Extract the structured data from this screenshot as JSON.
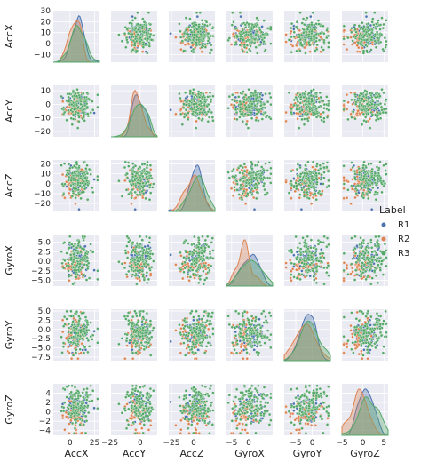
{
  "chart_data": {
    "type": "scatter",
    "variables": [
      "AccX",
      "AccY",
      "AccZ",
      "GyroX",
      "GyroY",
      "GyroZ"
    ],
    "diagonal": "kde",
    "grid": true,
    "legend_position": "right",
    "legend": {
      "title": "Label",
      "entries": [
        {
          "name": "R1",
          "color": "#4c72b0"
        },
        {
          "name": "R2",
          "color": "#dd8452"
        },
        {
          "name": "R3",
          "color": "#55a868"
        }
      ]
    },
    "axes": {
      "AccX": {
        "lim": [
          -17,
          30
        ],
        "ticks": [
          -10,
          0,
          10,
          20,
          30
        ],
        "xticks": [
          0,
          25
        ]
      },
      "AccY": {
        "lim": [
          -24,
          14
        ],
        "ticks": [
          -20,
          -10,
          0,
          10
        ],
        "xticks": [
          -25,
          0
        ]
      },
      "AccZ": {
        "lim": [
          -28,
          24
        ],
        "ticks": [
          -20,
          -10,
          0,
          10,
          20
        ],
        "xticks": [
          -25,
          0
        ]
      },
      "GyroX": {
        "lim": [
          -6.5,
          7
        ],
        "ticks": [
          -5.0,
          -2.5,
          0.0,
          2.5,
          5.0
        ],
        "xticks": [
          -5,
          0
        ]
      },
      "GyroY": {
        "lim": [
          -8.5,
          5.5
        ],
        "ticks": [
          -7.5,
          -5.0,
          -2.5,
          0.0,
          2.5,
          5.0
        ],
        "xticks": [
          -5,
          0
        ]
      },
      "GyroZ": {
        "lim": [
          -5,
          6
        ],
        "ticks": [
          -4,
          -2,
          0,
          2,
          4
        ],
        "xticks": [
          -5,
          0,
          5
        ]
      }
    },
    "tick_labels": {
      "AccX_y": [
        "30",
        "20",
        "10",
        "0",
        "−10"
      ],
      "AccY_y": [
        "10",
        "0",
        "−10",
        "−20"
      ],
      "AccZ_y": [
        "20",
        "10",
        "0",
        "−10",
        "−20"
      ],
      "GyroX_y": [
        "5.0",
        "2.5",
        "0.0",
        "−2.5",
        "−5.0"
      ],
      "GyroY_y": [
        "5.0",
        "2.5",
        "0.0",
        "−2.5",
        "−5.0",
        "−7.5"
      ],
      "GyroZ_y": [
        "4",
        "2",
        "0",
        "−2",
        "−4"
      ],
      "x": [
        "0",
        "25",
        "−25",
        "0",
        "−25",
        "0",
        "−5",
        "0",
        "−5",
        "0",
        "−5",
        "0",
        "5"
      ]
    },
    "series": [
      {
        "name": "R1",
        "mean": [
          8,
          -2,
          2,
          0.5,
          -1,
          1
        ],
        "sd": [
          6,
          6,
          7,
          2.5,
          2.5,
          1.8
        ],
        "points": 55
      },
      {
        "name": "R2",
        "mean": [
          5,
          -3,
          0,
          -1,
          -2,
          -1
        ],
        "sd": [
          5,
          5,
          8,
          2.5,
          2.8,
          1.8
        ],
        "points": 55
      },
      {
        "name": "R3",
        "mean": [
          8,
          -1,
          4,
          0.5,
          -0.5,
          1.5
        ],
        "sd": [
          7,
          6,
          8,
          2.8,
          2.8,
          2
        ],
        "points": 140
      }
    ]
  }
}
